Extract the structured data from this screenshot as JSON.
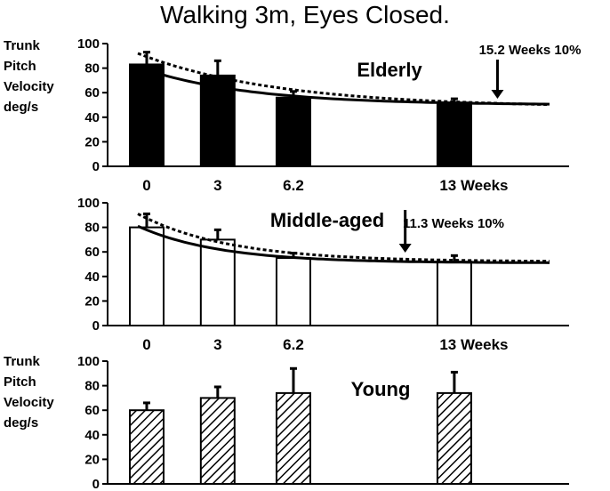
{
  "title": "Walking 3m, Eyes Closed.",
  "chart_data": [
    {
      "type": "bar",
      "group": "Elderly",
      "ylabel": [
        "Trunk",
        "Pitch",
        "Velocity",
        "deg/s"
      ],
      "ylim": [
        0,
        100
      ],
      "yticks": [
        "0",
        "20",
        "40",
        "60",
        "80",
        "100"
      ],
      "x_domain": [
        0,
        17.4
      ],
      "x_tick_labels": [
        {
          "x": 0,
          "label": "0"
        },
        {
          "x": 3,
          "label": "3"
        },
        {
          "x": 6.2,
          "label": "6.2"
        },
        {
          "x": 13,
          "label": "13 Weeks"
        }
      ],
      "bars": [
        {
          "x": 0,
          "value": 83,
          "error": 10
        },
        {
          "x": 3,
          "value": 74,
          "error": 12
        },
        {
          "x": 6.2,
          "value": 56,
          "error": 5
        },
        {
          "x": 13,
          "value": 52,
          "error": 3
        }
      ],
      "bar_fill": "solid",
      "solid_curve": {
        "start": 81,
        "asymptote": 50,
        "rate": 0.22
      },
      "dotted_curve": {
        "start": 92,
        "asymptote": 48,
        "rate": 0.17
      },
      "annotation": {
        "text": "15.2 Weeks 10%",
        "x": 15.2
      }
    },
    {
      "type": "bar",
      "group": "Middle-aged",
      "ylabel": [],
      "ylim": [
        0,
        100
      ],
      "yticks": [
        "0",
        "20",
        "40",
        "60",
        "80",
        "100"
      ],
      "x_domain": [
        0,
        17.4
      ],
      "x_tick_labels": [
        {
          "x": 0,
          "label": "0"
        },
        {
          "x": 3,
          "label": "3"
        },
        {
          "x": 6.2,
          "label": "6.2"
        },
        {
          "x": 13,
          "label": "13 Weeks"
        }
      ],
      "bars": [
        {
          "x": 0,
          "value": 80,
          "error": 11
        },
        {
          "x": 3,
          "value": 70,
          "error": 8
        },
        {
          "x": 6.2,
          "value": 55,
          "error": 4
        },
        {
          "x": 13,
          "value": 52,
          "error": 5
        }
      ],
      "bar_fill": "open",
      "solid_curve": {
        "start": 81,
        "asymptote": 51,
        "rate": 0.29
      },
      "dotted_curve": {
        "start": 91,
        "asymptote": 52,
        "rate": 0.26
      },
      "annotation": {
        "text": "11.3 Weeks 10%",
        "x": 11.3
      }
    },
    {
      "type": "bar",
      "group": "Young",
      "ylabel": [
        "Trunk",
        "Pitch",
        "Velocity",
        "deg/s"
      ],
      "ylim": [
        0,
        100
      ],
      "yticks": [
        "0",
        "20",
        "40",
        "60",
        "80",
        "100"
      ],
      "x_domain": [
        0,
        17.4
      ],
      "x_tick_labels": [],
      "bars": [
        {
          "x": 0,
          "value": 60,
          "error": 6
        },
        {
          "x": 3,
          "value": 70,
          "error": 9
        },
        {
          "x": 6.2,
          "value": 74,
          "error": 20
        },
        {
          "x": 13,
          "value": 74,
          "error": 17
        }
      ],
      "bar_fill": "hatched"
    }
  ]
}
